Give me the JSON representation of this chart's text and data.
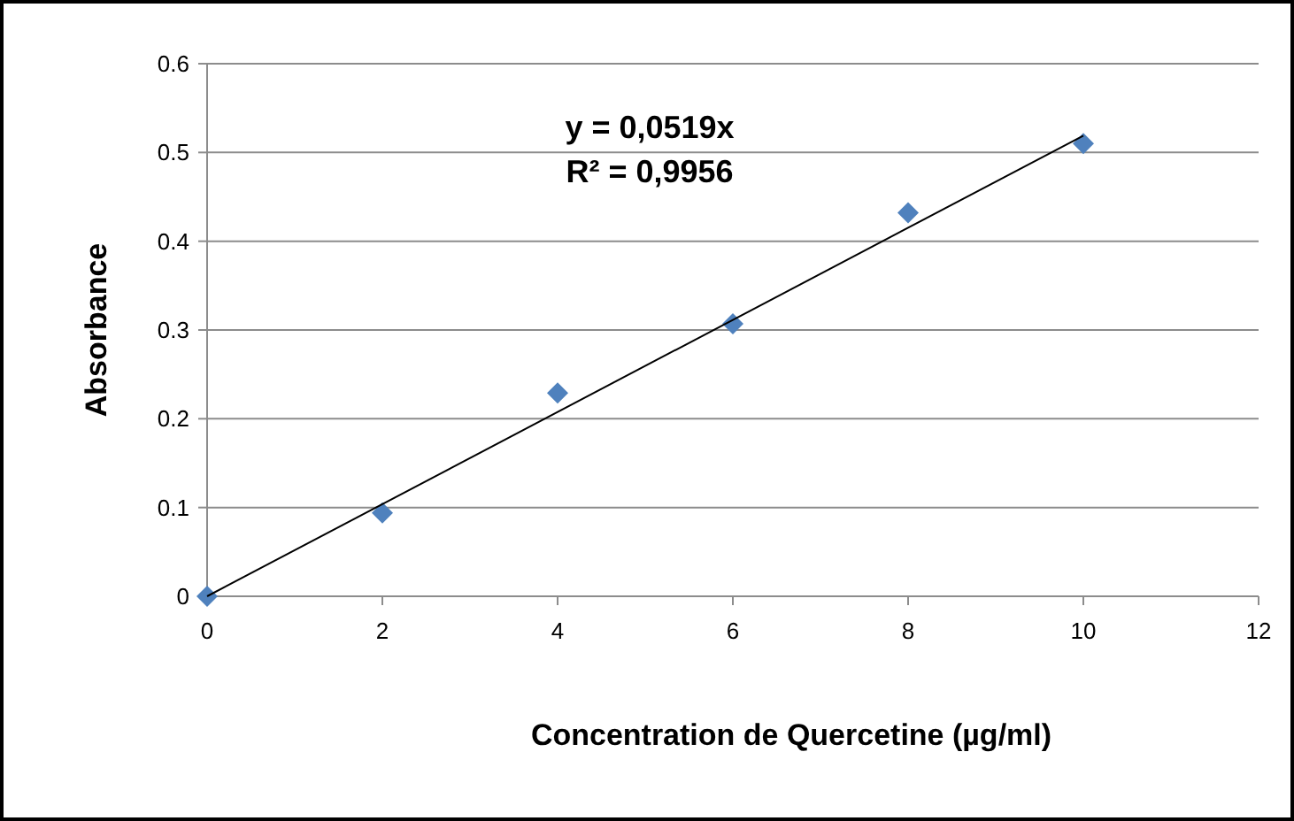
{
  "chart_data": {
    "type": "scatter",
    "xlabel": "Concentration de Quercetine (µg/ml)",
    "ylabel": "Absorbance",
    "annotations": [
      "y = 0,0519x",
      "R² = 0,9956"
    ],
    "xlim": [
      0,
      12
    ],
    "xticks": [
      0,
      2,
      4,
      6,
      8,
      10,
      12
    ],
    "ylim": [
      0,
      0.6
    ],
    "yticks": [
      0,
      0.1,
      0.2,
      0.3,
      0.4,
      0.5,
      0.6
    ],
    "grid": "y",
    "series": [
      {
        "color": "#4f81bd",
        "marker": "diamond",
        "x": [
          0,
          2,
          4,
          6,
          8,
          10
        ],
        "values": [
          0,
          0.094,
          0.229,
          0.307,
          0.432,
          0.51
        ]
      },
      {
        "type": "line",
        "color": "#000000",
        "x": [
          0,
          10
        ],
        "values": [
          0,
          0.519
        ]
      }
    ]
  }
}
